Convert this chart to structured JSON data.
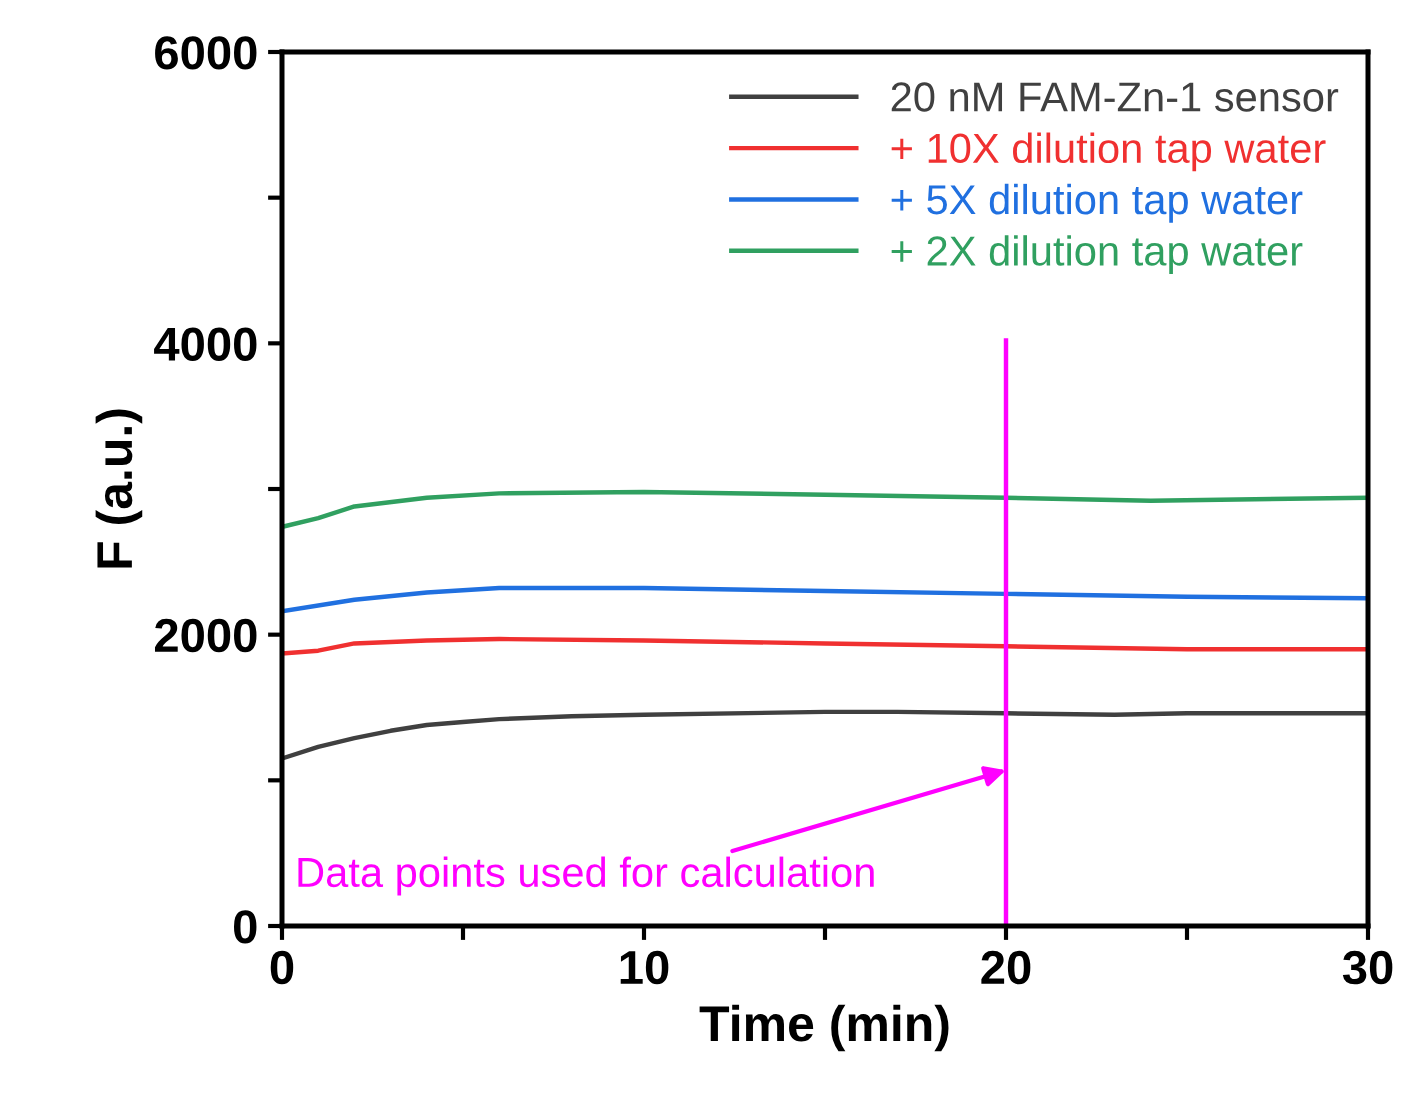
{
  "chart_data": {
    "type": "line",
    "xlabel": "Time (min)",
    "ylabel": "F (a.u.)",
    "xlim": [
      0,
      30
    ],
    "xticks": [
      0,
      {
        "value": 5,
        "label": null
      },
      10,
      {
        "value": 15,
        "label": null
      },
      20,
      {
        "value": 25,
        "label": null
      },
      30
    ],
    "ylim": [
      0,
      6000
    ],
    "yticks": [
      0,
      {
        "value": 1000,
        "label": null
      },
      2000,
      {
        "value": 3000,
        "label": null
      },
      4000,
      {
        "value": 5000,
        "label": null
      },
      6000
    ],
    "grid": false,
    "legend": "top right",
    "line_style": "solid",
    "series": [
      {
        "name": "20 nM FAM-Zn-1 sensor",
        "color": "#404040",
        "x": [
          0,
          1,
          2,
          3,
          4,
          5,
          6,
          8,
          10,
          15,
          17,
          20,
          23,
          25,
          30
        ],
        "values": [
          1150,
          1230,
          1290,
          1340,
          1380,
          1400,
          1420,
          1440,
          1450,
          1470,
          1470,
          1460,
          1450,
          1460,
          1460
        ]
      },
      {
        "name": "+ 10X dilution tap water",
        "color": "#f03030",
        "x": [
          0,
          1,
          2,
          4,
          6,
          10,
          15,
          20,
          25,
          30
        ],
        "values": [
          1870,
          1890,
          1940,
          1960,
          1970,
          1960,
          1940,
          1920,
          1900,
          1900
        ]
      },
      {
        "name": "+ 5X dilution tap water",
        "color": "#2070e0",
        "x": [
          0,
          2,
          4,
          6,
          10,
          15,
          20,
          25,
          30
        ],
        "values": [
          2160,
          2240,
          2290,
          2320,
          2320,
          2300,
          2280,
          2260,
          2250
        ]
      },
      {
        "name": "+ 2X dilution tap water",
        "color": "#30a060",
        "x": [
          0,
          1,
          2,
          4,
          6,
          10,
          15,
          20,
          24,
          30
        ],
        "values": [
          2740,
          2800,
          2880,
          2940,
          2970,
          2980,
          2960,
          2940,
          2920,
          2940
        ]
      },
      {
        "type": "line",
        "color": "#ff00ff",
        "x": [
          20,
          20
        ],
        "values": [
          0,
          4020
        ]
      }
    ],
    "annotations": [
      {
        "text": "Data points used for calculation",
        "x": 20,
        "y": 1070
      }
    ]
  }
}
